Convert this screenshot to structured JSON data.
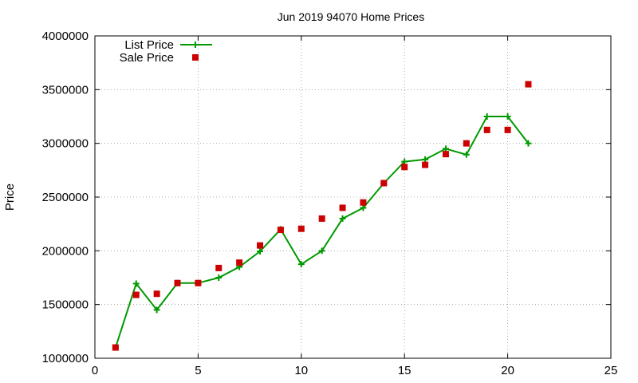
{
  "chart_data": {
    "type": "line",
    "title": "Jun 2019 94070 Home Prices",
    "xlabel": "",
    "ylabel": "Price",
    "xlim": [
      0,
      25
    ],
    "ylim": [
      1000000,
      4000000
    ],
    "x_ticks": [
      0,
      5,
      10,
      15,
      20,
      25
    ],
    "y_ticks": [
      1000000,
      1500000,
      2000000,
      2500000,
      3000000,
      3500000,
      4000000
    ],
    "x_tick_labels": [
      "0",
      "5",
      "10",
      "15",
      "20",
      "25"
    ],
    "y_tick_labels": [
      "1000000",
      "1500000",
      "2000000",
      "2500000",
      "3000000",
      "3500000",
      "4000000"
    ],
    "grid": true,
    "legend_position": "top-left",
    "series": [
      {
        "name": "List Price",
        "style": "line-plus",
        "color": "#009900",
        "x": [
          1,
          2,
          3,
          4,
          5,
          6,
          7,
          8,
          9,
          10,
          11,
          12,
          13,
          14,
          15,
          16,
          17,
          18,
          19,
          20,
          21
        ],
        "y": [
          1100000,
          1695000,
          1450000,
          1700000,
          1700000,
          1750000,
          1850000,
          1995000,
          2200000,
          1875000,
          2000000,
          2300000,
          2400000,
          2630000,
          2830000,
          2850000,
          2950000,
          2895000,
          3250000,
          3250000,
          3000000
        ]
      },
      {
        "name": "Sale Price",
        "style": "square",
        "color": "#cc0000",
        "x": [
          1,
          2,
          3,
          4,
          5,
          6,
          7,
          8,
          9,
          10,
          11,
          12,
          13,
          14,
          15,
          16,
          17,
          18,
          19,
          20,
          21
        ],
        "y": [
          1100000,
          1590000,
          1600000,
          1700000,
          1700000,
          1840000,
          1890000,
          2050000,
          2195000,
          2205000,
          2300000,
          2400000,
          2450000,
          2630000,
          2780000,
          2800000,
          2900000,
          3000000,
          3125000,
          3125000,
          3550000
        ]
      }
    ]
  }
}
